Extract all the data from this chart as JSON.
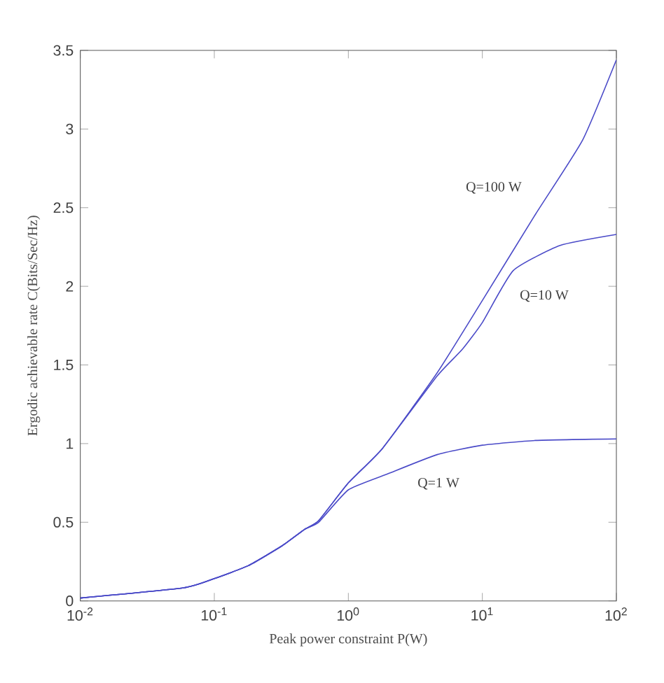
{
  "chart_data": {
    "type": "line",
    "xlabel": "Peak power constraint P(W)",
    "ylabel": "Ergodic achievable rate C(Bits/Sec/Hz)",
    "log": "x",
    "grid": false,
    "marker": "none",
    "line_style": "solid",
    "xlim": [
      0.01,
      100
    ],
    "ylim": [
      0,
      3.5
    ],
    "xticks": [
      {
        "value": 0.01,
        "label": "10$^{-2}$"
      },
      {
        "value": 0.1,
        "label": "10$^{-1}$"
      },
      {
        "value": 1,
        "label": "10$^{0}$"
      },
      {
        "value": 10,
        "label": "10$^{1}$"
      },
      {
        "value": 100,
        "label": "10$^{2}$"
      }
    ],
    "yticks": [
      0,
      0.5,
      1,
      1.5,
      2,
      2.5,
      3,
      3.5
    ],
    "series": [
      {
        "name": "Q=100 W",
        "color": "#4b4bc8",
        "x": [
          0.01,
          0.059,
          0.1,
          0.18,
          0.32,
          0.47,
          0.6,
          1,
          1.8,
          4.6,
          10,
          25,
          56,
          100
        ],
        "values": [
          0.018,
          0.083,
          0.142,
          0.225,
          0.35,
          0.454,
          0.51,
          0.75,
          0.97,
          1.45,
          1.91,
          2.46,
          2.93,
          3.44
        ]
      },
      {
        "name": "Q=10 W",
        "color": "#4b4bc8",
        "x": [
          0.01,
          0.059,
          0.1,
          0.18,
          0.32,
          0.47,
          0.6,
          1,
          1.8,
          4.6,
          7.1,
          10,
          17,
          38,
          100
        ],
        "values": [
          0.018,
          0.083,
          0.142,
          0.225,
          0.35,
          0.454,
          0.51,
          0.75,
          0.97,
          1.43,
          1.6,
          1.77,
          2.1,
          2.26,
          2.33
        ]
      },
      {
        "name": "Q=1 W",
        "color": "#4b4bc8",
        "x": [
          0.01,
          0.059,
          0.1,
          0.18,
          0.32,
          0.47,
          0.6,
          1,
          2,
          4.6,
          10,
          25,
          100
        ],
        "values": [
          0.018,
          0.083,
          0.142,
          0.225,
          0.35,
          0.454,
          0.5,
          0.706,
          0.81,
          0.93,
          0.99,
          1.02,
          1.03
        ]
      }
    ]
  }
}
